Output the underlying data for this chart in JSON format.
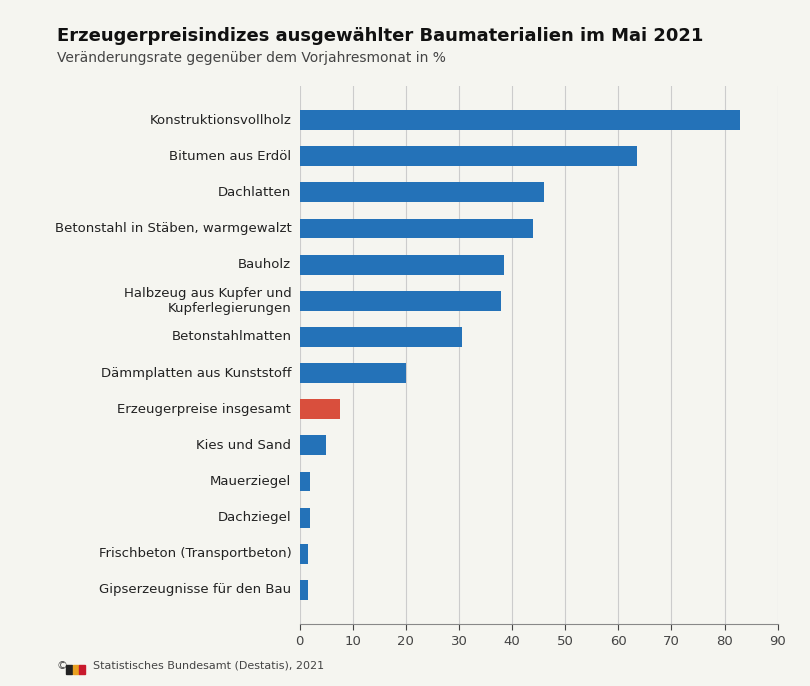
{
  "title": "Erzeugerpreisindizes ausgewählter Baumaterialien im Mai 2021",
  "subtitle": "Veränderungsrate gegenüber dem Vorjahresmonat in %",
  "categories": [
    "Konstruktionsvollholz",
    "Bitumen aus Erdöl",
    "Dachlatten",
    "Betonstahl in Stäben, warmgewalzt",
    "Bauholz",
    "Halbzeug aus Kupfer und\nKupferlegierungen",
    "Betonstahlmatten",
    "Dämmplatten aus Kunststoff",
    "Erzeugerpreise insgesamt",
    "Kies und Sand",
    "Mauerziegel",
    "Dachziegel",
    "Frischbeton (Transportbeton)",
    "Gipserzeugnisse für den Bau"
  ],
  "values": [
    83.0,
    63.5,
    46.0,
    44.0,
    38.5,
    38.0,
    30.5,
    20.0,
    7.5,
    5.0,
    2.0,
    2.0,
    1.5,
    1.5
  ],
  "colors": [
    "#2472b8",
    "#2472b8",
    "#2472b8",
    "#2472b8",
    "#2472b8",
    "#2472b8",
    "#2472b8",
    "#2472b8",
    "#d94f3d",
    "#2472b8",
    "#2472b8",
    "#2472b8",
    "#2472b8",
    "#2472b8"
  ],
  "xlim": [
    0,
    90
  ],
  "xticks": [
    0,
    10,
    20,
    30,
    40,
    50,
    60,
    70,
    80,
    90
  ],
  "background_color": "#f5f5f0",
  "title_fontsize": 13,
  "subtitle_fontsize": 10,
  "tick_fontsize": 9.5,
  "label_fontsize": 9.5,
  "grid_color": "#cccccc",
  "logo_colors": [
    "#222222",
    "#e8a020",
    "#c8192c"
  ]
}
